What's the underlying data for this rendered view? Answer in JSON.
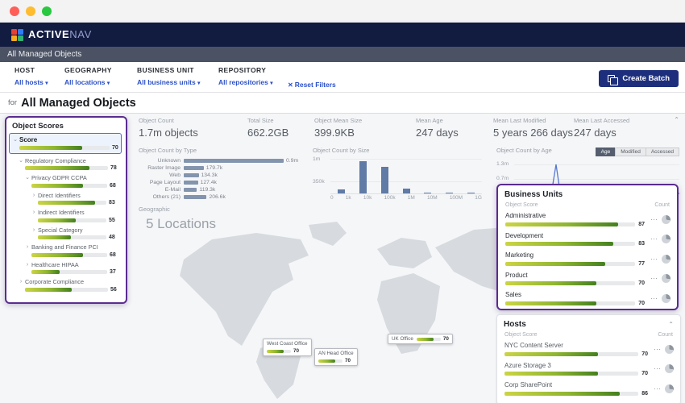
{
  "brand": {
    "bold": "ACTIVE",
    "light": "NAV"
  },
  "breadcrumb": "All Managed Objects",
  "filters": {
    "tabs": [
      {
        "label": "HOST",
        "dropdown": "All hosts"
      },
      {
        "label": "GEOGRAPHY",
        "dropdown": "All locations"
      },
      {
        "label": "BUSINESS UNIT",
        "dropdown": "All business units"
      },
      {
        "label": "REPOSITORY",
        "dropdown": "All repositories"
      }
    ],
    "reset_label": "Reset Filters",
    "create_batch_label": "Create Batch"
  },
  "page_title": {
    "prefix": "for",
    "title": "All Managed Objects"
  },
  "object_scores": {
    "title": "Object Scores",
    "items": [
      {
        "label": "Score",
        "value": 70,
        "level": 0,
        "expanded": true,
        "selected": true
      },
      {
        "label": "Regulatory Compliance",
        "value": 78,
        "level": 1,
        "expanded": true,
        "selected": false
      },
      {
        "label": "Privacy GDPR CCPA",
        "value": 68,
        "level": 2,
        "expanded": true,
        "selected": false
      },
      {
        "label": "Direct Identifiers",
        "value": 83,
        "level": 3,
        "expanded": false,
        "selected": false
      },
      {
        "label": "Indirect Identifiers",
        "value": 55,
        "level": 3,
        "expanded": false,
        "selected": false
      },
      {
        "label": "Special Category",
        "value": 48,
        "level": 3,
        "expanded": false,
        "selected": false
      },
      {
        "label": "Banking and Finance PCI",
        "value": 68,
        "level": 2,
        "expanded": false,
        "selected": false
      },
      {
        "label": "Healthcare HIPAA",
        "value": 37,
        "level": 2,
        "expanded": false,
        "selected": false
      },
      {
        "label": "Corporate Compliance",
        "value": 56,
        "level": 1,
        "expanded": false,
        "selected": false
      }
    ]
  },
  "stats": [
    {
      "label": "Object Count",
      "value": "1.7m objects"
    },
    {
      "label": "Total Size",
      "value": "662.2GB"
    },
    {
      "label": "Object Mean Size",
      "value": "399.9KB"
    },
    {
      "label": "Mean Age",
      "value": "247 days"
    },
    {
      "label": "Mean Last Modified",
      "value": "5 years 266 days"
    },
    {
      "label": "Mean Last Accessed",
      "value": "247 days"
    }
  ],
  "chart_data": [
    {
      "type": "bar",
      "orientation": "horizontal",
      "title": "Object Count by Type",
      "categories": [
        "Unknown",
        "Raster Image",
        "Web",
        "Page Layout",
        "E-Mail",
        "Others (21)"
      ],
      "values": [
        900000,
        179700,
        134300,
        127400,
        119300,
        206600
      ],
      "value_labels": [
        "0.9m",
        "179.7k",
        "134.3k",
        "127.4k",
        "119.3k",
        "206.6k"
      ],
      "bar_color": "#8394ad"
    },
    {
      "type": "bar",
      "title": "Object Count by Size",
      "x_ticks": [
        "0",
        "1k",
        "10k",
        "100k",
        "1M",
        "10M",
        "100M",
        "1G"
      ],
      "y_ticks": [
        "1m",
        "350k"
      ],
      "ylim": [
        0,
        1000000
      ],
      "values": [
        120000,
        900000,
        760000,
        140000,
        15000,
        2000,
        500
      ],
      "bar_color": "#5f7ba6"
    },
    {
      "type": "line",
      "title": "Object Count by Age",
      "y_ticks": [
        "1.3m",
        "0.7m"
      ],
      "buttons": [
        "Age",
        "Modified",
        "Accessed"
      ],
      "active_button": "Age",
      "line_color": "#5577d0",
      "shape_note": "mostly flat near zero with one tall narrow spike, partially hidden behind Business Units panel"
    }
  ],
  "geographic": {
    "label": "Geographic",
    "count_label": "5 Locations",
    "locations": [
      {
        "name": "West Coast Office",
        "value": 70
      },
      {
        "name": "AN Head Office",
        "value": 70
      },
      {
        "name": "UK Office",
        "value": 70
      }
    ]
  },
  "business_units": {
    "title": "Business Units",
    "col_score": "Object Score",
    "col_count": "Count",
    "rows": [
      {
        "name": "Administrative",
        "value": 87
      },
      {
        "name": "Development",
        "value": 83
      },
      {
        "name": "Marketing",
        "value": 77
      },
      {
        "name": "Product",
        "value": 70
      },
      {
        "name": "Sales",
        "value": 70
      }
    ]
  },
  "hosts": {
    "title": "Hosts",
    "col_score": "Object Score",
    "col_count": "Count",
    "rows": [
      {
        "name": "NYC Content Server",
        "value": 70
      },
      {
        "name": "Azure Storage 3",
        "value": 70
      },
      {
        "name": "Corp SharePoint",
        "value": 86
      }
    ]
  },
  "colors": {
    "navy_header": "#121b40",
    "breadcrumb_bg": "#4b5263",
    "accent_blue": "#2b50c7",
    "create_batch_bg": "#1d2f7c",
    "panel_purple_border": "#5a2c90",
    "score_bar_gradient": [
      "#cbd445",
      "#44801f"
    ],
    "type_bar": "#8394ad",
    "size_bar": "#5f7ba6",
    "age_line": "#5577d0"
  }
}
